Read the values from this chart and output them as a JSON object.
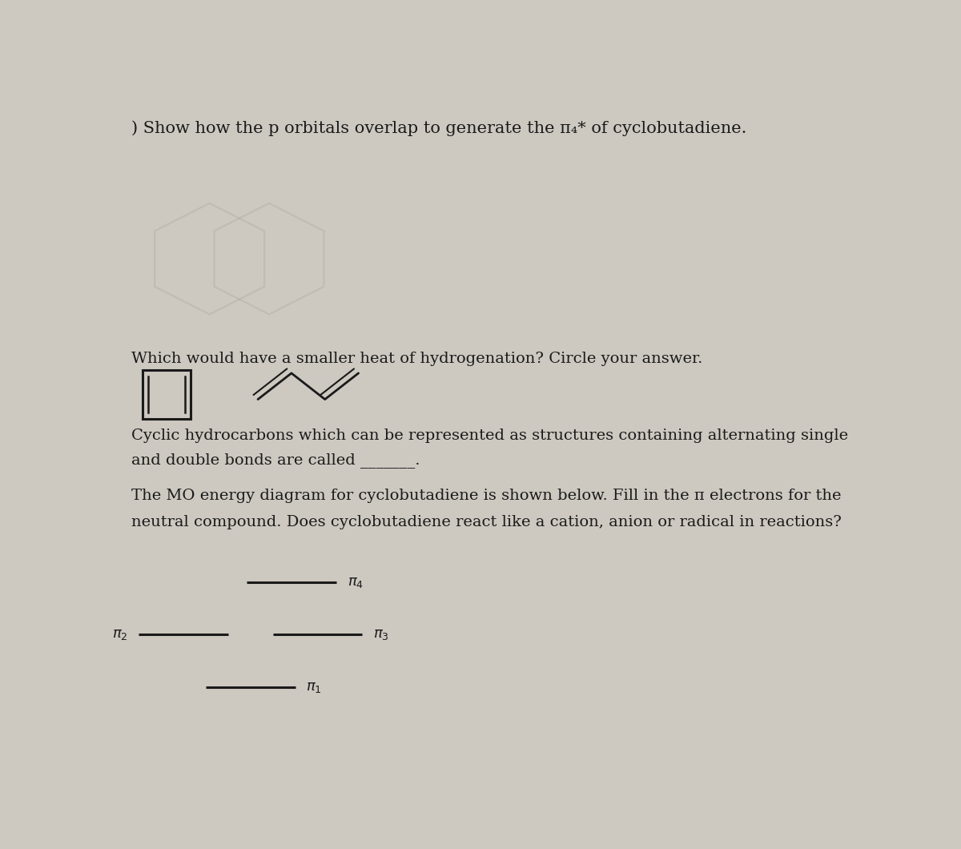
{
  "bg_color": "#cdc8c0",
  "text_color": "#1a1a1a",
  "font_size_title": 15,
  "font_size_body": 14,
  "font_size_mo_label": 13,
  "title_text": ") Show how the p orbitals overlap to generate the π4* of cyclobutadiene.",
  "q2_text": "Which would have a smaller heat of hydrogenation? Circle your answer.",
  "q3_text_line1": "Cyclic hydrocarbons which can be represented as structures containing alternating single",
  "q3_text_line2": "and double bonds are called _______.",
  "q4_text_line1": "The MO energy diagram for cyclobutadiene is shown below. Fill in the π electrons for the",
  "q4_text_line2": "neutral compound. Does cyclobutadiene react like a cation, anion or radical in reactions?",
  "mo_line_hw": 0.06,
  "mo_lw": 2.2
}
